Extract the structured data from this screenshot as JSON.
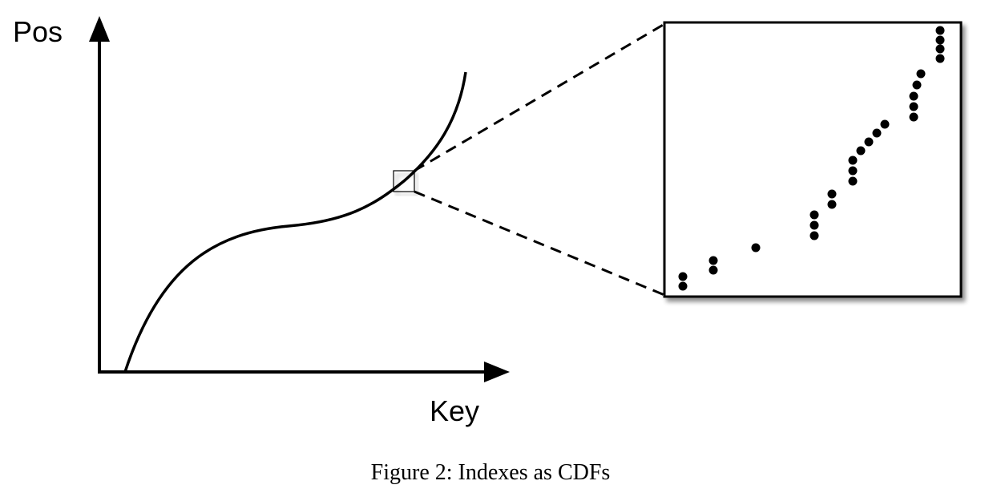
{
  "diagram": {
    "y_axis_label": "Pos",
    "x_axis_label": "Key",
    "caption": "Figure 2: Indexes as CDFs",
    "colors": {
      "ink": "#000000",
      "background": "#ffffff",
      "shadow": "#bbbbbb"
    }
  }
}
